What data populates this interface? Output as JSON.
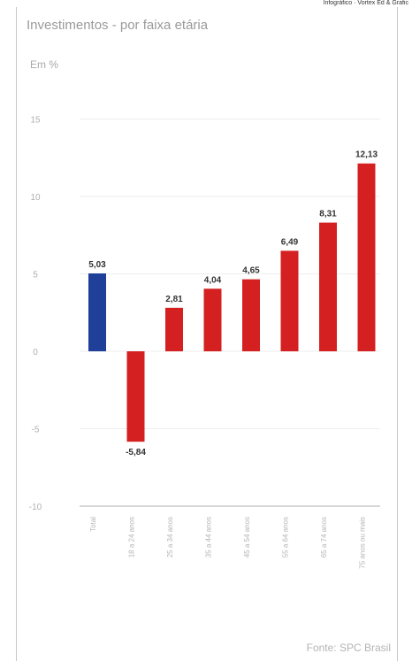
{
  "header": {
    "credit": "Infográfico · Vortex Ed & Grafic",
    "title": "Investimentos - por faixa etária",
    "unit": "Em %",
    "source": "Fonte: SPC Brasil"
  },
  "colors": {
    "first_bar": "#1f3f99",
    "bars": "#d42020",
    "gridline": "#eeeeee"
  },
  "chart_data": {
    "type": "bar",
    "categories": [
      "Total",
      "18 a 24 anos",
      "25 a 34 anos",
      "35 a 44 anos",
      "45 a 54 anos",
      "55 a 64 anos",
      "65 a 74 anos",
      "75 anos ou mais"
    ],
    "values": [
      5.03,
      -5.84,
      2.81,
      4.04,
      4.65,
      6.49,
      8.31,
      12.13
    ],
    "value_labels": [
      "5,03",
      "-5,84",
      "2,81",
      "4,04",
      "4,65",
      "6,49",
      "8,31",
      "12,13"
    ],
    "yticks": [
      -10,
      -5,
      0,
      5,
      10,
      15
    ],
    "ytick_labels": [
      "-10",
      "-5",
      "0",
      "5",
      "10",
      "15"
    ],
    "ylim": [
      -10,
      15
    ],
    "grid": true,
    "legend": "none"
  }
}
